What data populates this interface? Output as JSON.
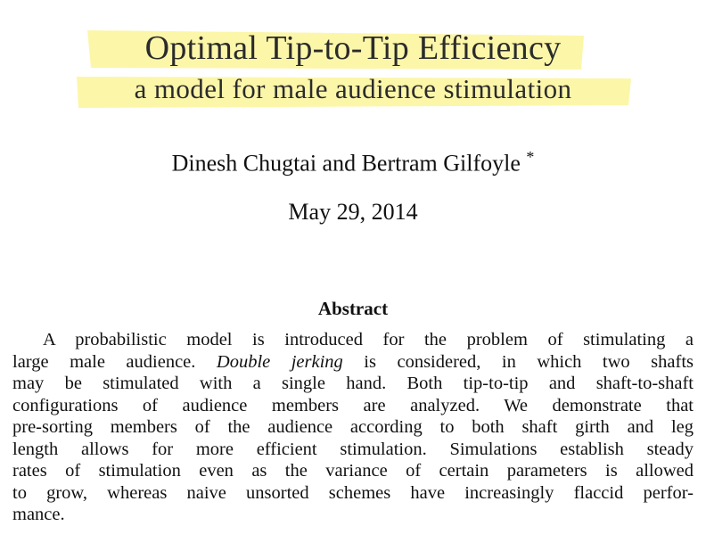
{
  "title": "Optimal Tip-to-Tip Efficiency",
  "subtitle": "a model for male audience stimulation",
  "authors": "Dinesh Chugtai and Bertram Gilfoyle",
  "author_note_mark": "*",
  "date": "May 29, 2014",
  "abstract": {
    "heading": "Abstract",
    "lines": [
      [
        "A probabilistic model is introduced for the problem of stimulating a"
      ],
      [
        "large male audience. ",
        "Double jerking",
        " is considered, in which two shafts"
      ],
      [
        "may be stimulated with a single hand. Both tip-to-tip and shaft-to-shaft"
      ],
      [
        "configurations of audience members are analyzed. We demonstrate that"
      ],
      [
        "pre-sorting members of the audience according to both shaft girth and leg"
      ],
      [
        "length allows for more efficient stimulation. Simulations establish steady"
      ],
      [
        "rates of stimulation even as the variance of certain parameters is allowed"
      ],
      [
        "to grow, whereas naive unsorted schemes have increasingly flaccid perfor-"
      ],
      [
        "mance."
      ]
    ]
  }
}
